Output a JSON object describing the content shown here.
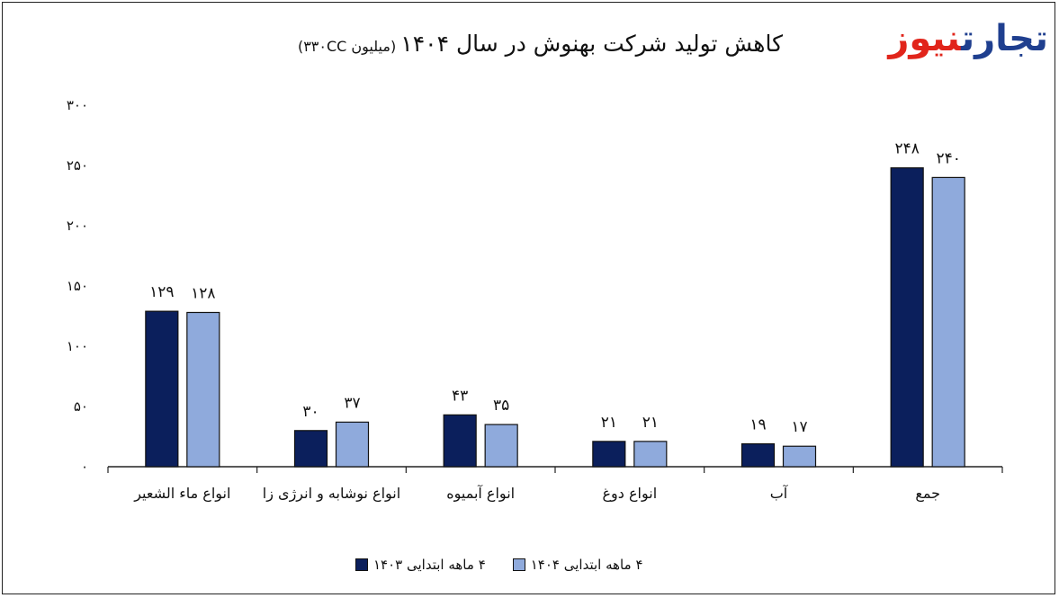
{
  "header": {
    "title": "کاهش تولید شرکت بهنوش در سال ۱۴۰۴",
    "subtitle": "(میلیون ۳۳۰CC)"
  },
  "logo": {
    "part1": "تجارت",
    "part2": "نیوز",
    "colors": {
      "part1": "#1f3f8f",
      "part2": "#e1251b"
    }
  },
  "colors": {
    "series1": "#0b1f5c",
    "series2": "#8faadc",
    "axis": "#222222"
  },
  "chart_data": {
    "type": "bar",
    "title": "کاهش تولید شرکت بهنوش در سال ۱۴۰۴",
    "subtitle": "(میلیون ۳۳۰CC)",
    "categories": [
      "انواع ماء الشعیر",
      "انواع نوشابه و انرژی زا",
      "انواع آبمیوه",
      "انواع دوغ",
      "آب",
      "جمع"
    ],
    "series": [
      {
        "name": "۴ ماهه ابتدایی ۱۴۰۳",
        "values": [
          129,
          30,
          43,
          21,
          19,
          248
        ],
        "labels": [
          "۱۲۹",
          "۳۰",
          "۴۳",
          "۲۱",
          "۱۹",
          "۲۴۸"
        ]
      },
      {
        "name": "۴ ماهه ابتدایی ۱۴۰۴",
        "values": [
          128,
          37,
          35,
          21,
          17,
          240
        ],
        "labels": [
          "۱۲۸",
          "۳۷",
          "۳۵",
          "۲۱",
          "۱۷",
          "۲۴۰"
        ]
      }
    ],
    "ylim": [
      0,
      300
    ],
    "yticks": [
      0,
      50,
      100,
      150,
      200,
      250,
      300
    ],
    "ytick_labels": [
      "۰",
      "۵۰",
      "۱۰۰",
      "۱۵۰",
      "۲۰۰",
      "۲۵۰",
      "۳۰۰"
    ],
    "grid": false,
    "legend": "bottom",
    "xlabel": "",
    "ylabel": ""
  }
}
